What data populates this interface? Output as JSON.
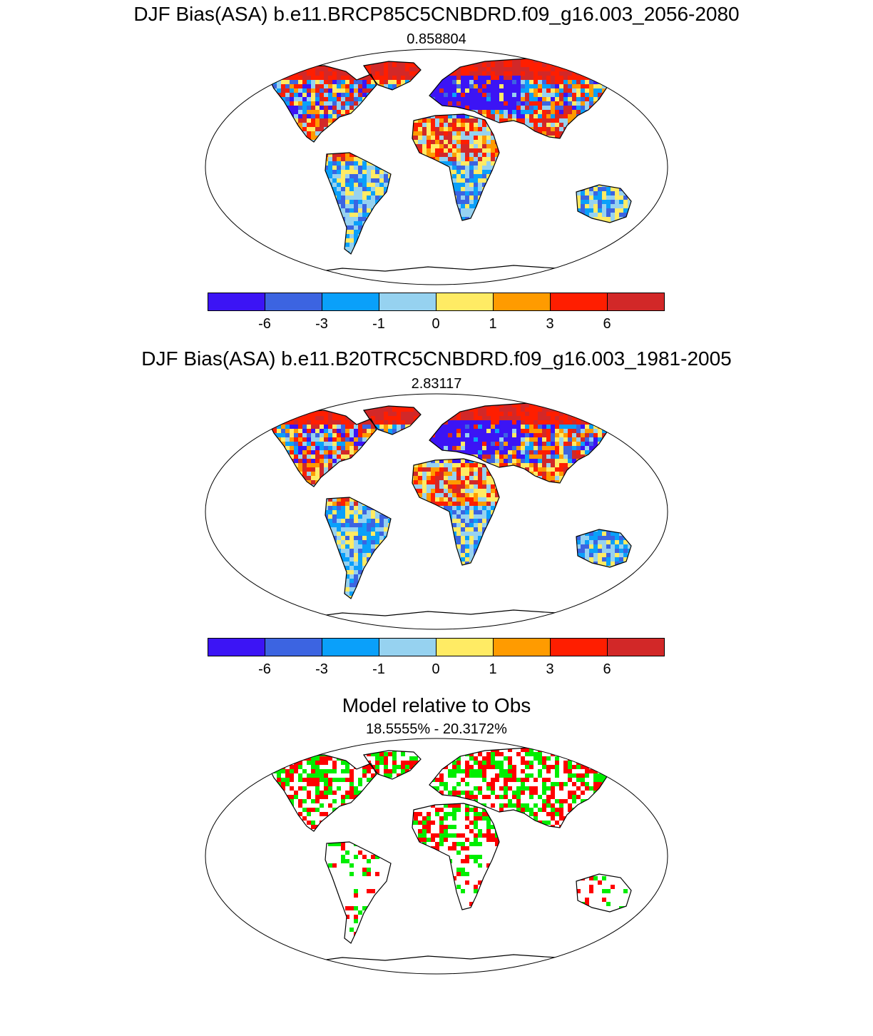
{
  "panels": [
    {
      "title": "DJF Bias(ASA) b.e11.BRCP85C5CNBDRD.f09_g16.003_2056-2080",
      "subtitle": "0.858804"
    },
    {
      "title": "DJF Bias(ASA) b.e11.B20TRC5CNBDRD.f09_g16.003_1981-2005",
      "subtitle": "2.83117"
    },
    {
      "title": "Model relative to Obs",
      "subtitle": "18.5555% - 20.3172%"
    }
  ],
  "colorbar": {
    "colors": [
      "#3c14f5",
      "#3c64e1",
      "#0aa0fa",
      "#96d2f0",
      "#ffeb64",
      "#ff9b00",
      "#ff1e00",
      "#d22828"
    ],
    "labels": [
      "-6",
      "-3",
      "-1",
      "0",
      "1",
      "3",
      "6"
    ]
  },
  "diff_colors": {
    "better": "#00ee00",
    "worse": "#ff0000"
  }
}
